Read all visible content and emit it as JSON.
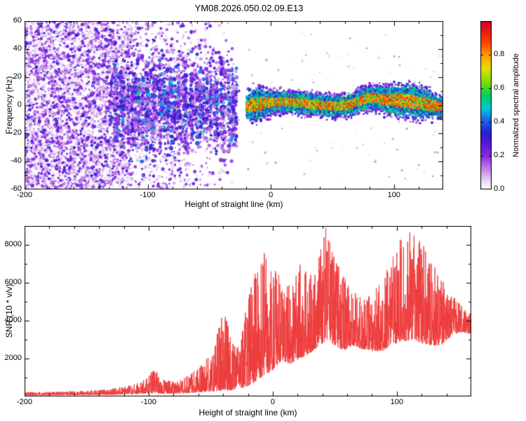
{
  "title": "YM08.2026.050.02.09.E13",
  "chart_data": [
    {
      "type": "heatmap",
      "name": "doppler-spectrogram",
      "xlabel": "Height of straight line (km)",
      "ylabel": "Frequency (Hz)",
      "xlim": [
        -200,
        140
      ],
      "ylim": [
        -60,
        60
      ],
      "x_ticks": [
        "-200",
        "-100",
        "0",
        "100"
      ],
      "x_minor_step": 20,
      "y_ticks": [
        "60",
        "40",
        "20",
        "0",
        "-20",
        "-40",
        "-60"
      ],
      "y_minor_step": 10,
      "colorbar": {
        "label": "Normalized spectral amplitude",
        "ticks": [
          "0.0",
          "0.2",
          "0.4",
          "0.6",
          "0.8"
        ],
        "range": [
          0,
          1
        ],
        "colormap": [
          [
            0,
            "#ffffff"
          ],
          [
            0.05,
            "#eadcf5"
          ],
          [
            0.13,
            "#c07ae6"
          ],
          [
            0.2,
            "#8a2be2"
          ],
          [
            0.28,
            "#5518d8"
          ],
          [
            0.34,
            "#2222cc"
          ],
          [
            0.42,
            "#1d6ae8"
          ],
          [
            0.48,
            "#00c8d8"
          ],
          [
            0.56,
            "#00d060"
          ],
          [
            0.64,
            "#7fdc00"
          ],
          [
            0.72,
            "#e8e000"
          ],
          [
            0.8,
            "#ff9c00"
          ],
          [
            0.88,
            "#ff3c00"
          ],
          [
            1,
            "#d40026"
          ]
        ]
      },
      "seed": 1337,
      "regimes": {
        "noise_speckle": {
          "x_range": [
            -200,
            -26
          ],
          "freq_range": [
            -60,
            60
          ],
          "density_profile": [
            [
              -200,
              1
            ],
            [
              -132,
              1
            ],
            [
              -110,
              0.45
            ],
            [
              -90,
              0.3
            ],
            [
              -60,
              0.16
            ],
            [
              -40,
              0.07
            ],
            [
              -30,
              0.02
            ],
            [
              -26,
              0
            ]
          ],
          "amplitude_range": [
            0.02,
            0.32
          ],
          "attempts": 9000
        },
        "broad_band": {
          "x_range": [
            -134,
            -25
          ],
          "center_freq": 0,
          "half_width_hz": 38,
          "amplitude_range": [
            0.1,
            0.44
          ],
          "cyan_fraction": 0.07,
          "dot_count": 4600
        },
        "gap_x_range": [
          -25,
          -19
        ],
        "coherent_band": {
          "x_range": [
            -19,
            140
          ],
          "center_freq": 0,
          "core_half_width_hz": 7,
          "wiggle_hz": 4,
          "wide_x_center": 112,
          "wide_extra_hz": 4,
          "amplitude_range": [
            0.05,
            0.97
          ],
          "dots_per_column": 26
        }
      }
    },
    {
      "type": "line",
      "name": "snr-profile",
      "xlabel": "Height of straight line (km)",
      "ylabel": "SNR (10 * v/v)",
      "xlim": [
        -200,
        160
      ],
      "ylim": [
        0,
        9000
      ],
      "x_ticks": [
        "-200",
        "-100",
        "0",
        "100"
      ],
      "x_minor_step": 20,
      "y_ticks": [
        "2000",
        "4000",
        "6000",
        "8000"
      ],
      "y_minor_step": 1000,
      "line_color": "#ee3b3b",
      "seed": 2026,
      "points": 2800,
      "envelope": [
        [
          -200,
          60,
          220
        ],
        [
          -175,
          70,
          260
        ],
        [
          -150,
          80,
          300
        ],
        [
          -130,
          90,
          420
        ],
        [
          -115,
          120,
          600
        ],
        [
          -105,
          140,
          800
        ],
        [
          -95,
          160,
          1500
        ],
        [
          -88,
          140,
          900
        ],
        [
          -78,
          150,
          800
        ],
        [
          -68,
          180,
          1100
        ],
        [
          -58,
          220,
          1700
        ],
        [
          -48,
          260,
          2300
        ],
        [
          -40,
          300,
          4800
        ],
        [
          -33,
          330,
          3200
        ],
        [
          -27,
          380,
          2600
        ],
        [
          -20,
          550,
          5200
        ],
        [
          -13,
          800,
          6800
        ],
        [
          -7,
          1100,
          7600
        ],
        [
          0,
          1400,
          6800
        ],
        [
          7,
          1900,
          6400
        ],
        [
          14,
          1700,
          5800
        ],
        [
          22,
          2000,
          7200
        ],
        [
          30,
          2300,
          6800
        ],
        [
          38,
          2700,
          7800
        ],
        [
          44,
          3000,
          9300
        ],
        [
          50,
          2700,
          7200
        ],
        [
          57,
          2400,
          6500
        ],
        [
          64,
          2700,
          5600
        ],
        [
          72,
          2500,
          5200
        ],
        [
          80,
          2400,
          5400
        ],
        [
          88,
          2400,
          6200
        ],
        [
          96,
          2700,
          7600
        ],
        [
          104,
          2900,
          8800
        ],
        [
          112,
          3000,
          8800
        ],
        [
          120,
          2800,
          8200
        ],
        [
          128,
          2700,
          7200
        ],
        [
          136,
          2700,
          6200
        ],
        [
          144,
          3200,
          5400
        ],
        [
          152,
          3400,
          4800
        ],
        [
          160,
          3300,
          4400
        ]
      ]
    }
  ]
}
